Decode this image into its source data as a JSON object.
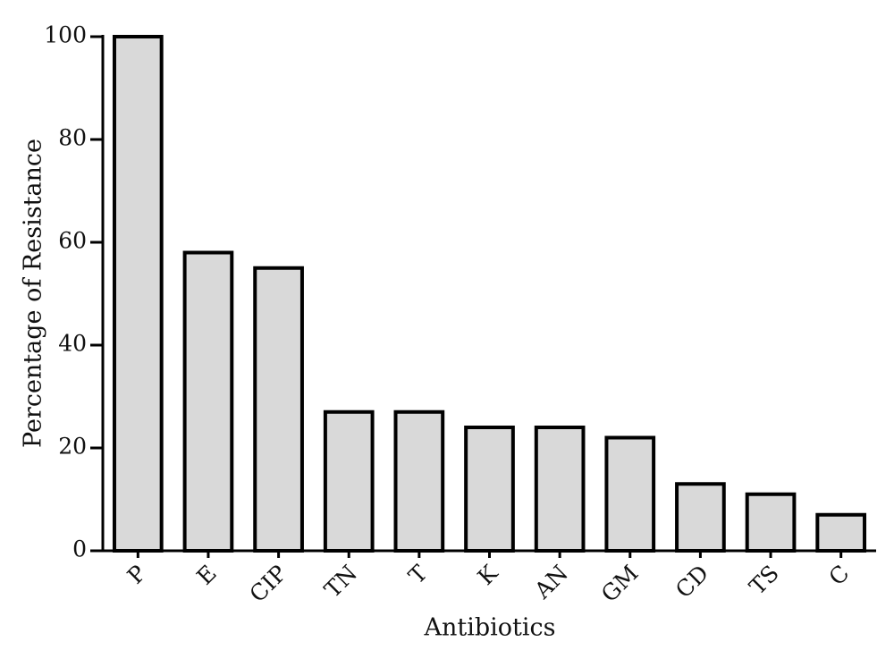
{
  "chart_data": {
    "type": "bar",
    "x_label": "Antibiotics",
    "y_label": "Percentage of Resistance",
    "categories": [
      "P",
      "E",
      "CIP",
      "TN",
      "T",
      "K",
      "AN",
      "GM",
      "CD",
      "TS",
      "C"
    ],
    "values": [
      100,
      58,
      55,
      27,
      27,
      24,
      24,
      22,
      13,
      11,
      7
    ],
    "color": "#d9d9d9",
    "ylim": [
      0,
      100
    ],
    "yticks": [
      0,
      20,
      40,
      60,
      80,
      100
    ],
    "grid": false
  }
}
